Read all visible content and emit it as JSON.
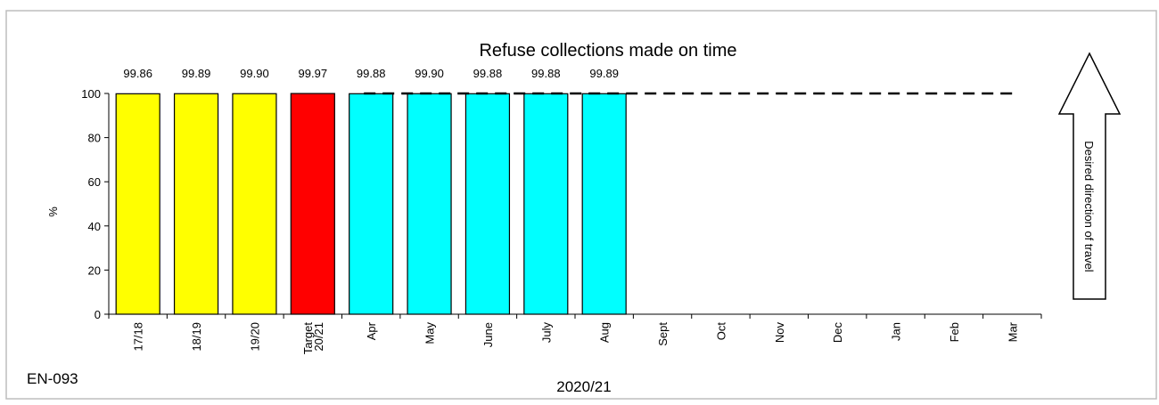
{
  "chart_data": {
    "type": "bar",
    "title": "Refuse collections made on time",
    "ylabel": "%",
    "xlabel": "2020/21",
    "ylim": [
      0,
      100
    ],
    "yticks": [
      0,
      20,
      40,
      60,
      80,
      100
    ],
    "grid": false,
    "categories": [
      "17/18",
      "18/19",
      "19/20",
      "Target 20/21",
      "Apr",
      "May",
      "June",
      "July",
      "Aug",
      "Sept",
      "Oct",
      "Nov",
      "Dec",
      "Jan",
      "Feb",
      "Mar"
    ],
    "values": [
      99.86,
      99.89,
      99.9,
      99.97,
      99.88,
      99.9,
      99.88,
      99.88,
      99.89,
      null,
      null,
      null,
      null,
      null,
      null,
      null
    ],
    "value_labels": [
      "99.86",
      "99.89",
      "99.90",
      "99.97",
      "99.88",
      "99.90",
      "99.88",
      "99.88",
      "99.89",
      "",
      "",
      "",
      "",
      "",
      "",
      ""
    ],
    "bar_colors": [
      "#ffff00",
      "#ffff00",
      "#ffff00",
      "#ff0000",
      "#00ffff",
      "#00ffff",
      "#00ffff",
      "#00ffff",
      "#00ffff",
      "#00ffff",
      "#00ffff",
      "#00ffff",
      "#00ffff",
      "#00ffff",
      "#00ffff",
      "#00ffff"
    ],
    "target_line": {
      "value": 100,
      "from_category": "Apr",
      "to_category": "Mar",
      "style": "dashed"
    },
    "annotation_arrow": {
      "label": "Desired direction of travel",
      "direction": "up"
    },
    "chart_id": "EN-093"
  }
}
